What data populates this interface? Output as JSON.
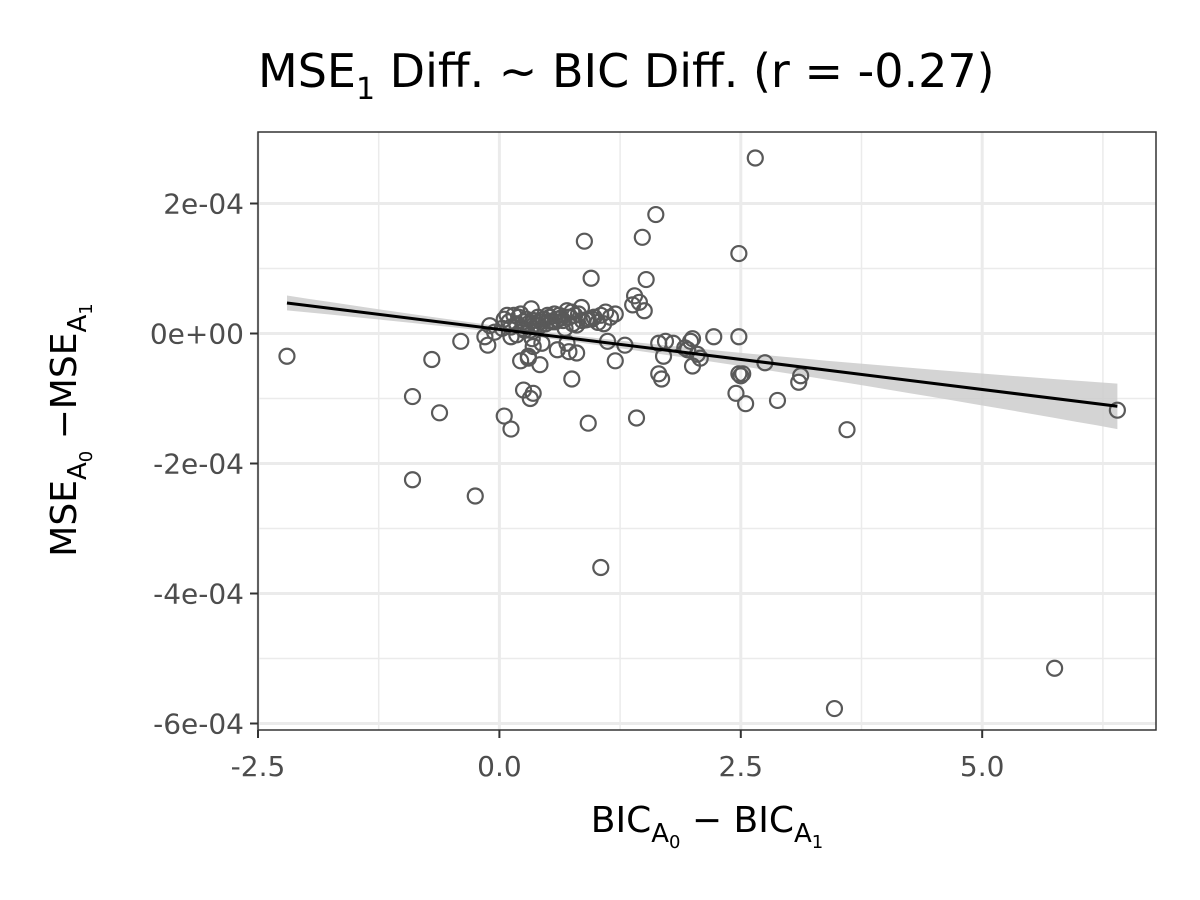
{
  "chart_data": {
    "type": "scatter",
    "title": {
      "main": "MSE",
      "main_sub": "1",
      "rest": " Diff. ~ BIC Diff. (r = -0.27)"
    },
    "xlabel": {
      "a": "BIC",
      "a_sub": "A",
      "a_subsub": "0",
      "op": " − ",
      "b": "BIC",
      "b_sub": "A",
      "b_subsub": "1"
    },
    "ylabel": {
      "a": "MSE",
      "a_sub": "A",
      "a_subsub": "0",
      "op": " −",
      "b": "MSE",
      "b_sub": "A",
      "b_subsub": "1"
    },
    "xlim": [
      -2.5,
      6.8
    ],
    "ylim": [
      -0.00061,
      0.00031
    ],
    "x_ticks": [
      {
        "value": -2.5,
        "label": "-2.5"
      },
      {
        "value": 0.0,
        "label": "0.0"
      },
      {
        "value": 2.5,
        "label": "2.5"
      },
      {
        "value": 5.0,
        "label": "5.0"
      }
    ],
    "x_minor": [
      -1.25,
      1.25,
      3.75,
      6.25
    ],
    "y_ticks": [
      {
        "value": 0.0002,
        "label": "2e-04"
      },
      {
        "value": 0.0,
        "label": "0e+00"
      },
      {
        "value": -0.0002,
        "label": "-2e-04"
      },
      {
        "value": -0.0004,
        "label": "-4e-04"
      },
      {
        "value": -0.0006,
        "label": "-6e-04"
      }
    ],
    "y_minor": [
      0.0001,
      -0.0001,
      -0.0003,
      -0.0005
    ],
    "grid": true,
    "colors": {
      "points": "#595959",
      "line": "#000000",
      "band": "#cccccc",
      "grid": "#ebebeb",
      "panel_border": "#333333"
    },
    "regression": {
      "x": [
        -2.2,
        6.4
      ],
      "y": [
        4.7e-05,
        -0.000112
      ],
      "band_upper": [
        5.8e-05,
        -7.7e-05
      ],
      "band_lower": [
        3.5e-05,
        -0.000147
      ]
    },
    "points": {
      "x": [
        2.65,
        1.62,
        0.88,
        1.48,
        2.48,
        0.95,
        1.52,
        1.4,
        1.45,
        1.38,
        1.5,
        1.2,
        1.1,
        1.05,
        0.98,
        0.92,
        0.85,
        0.82,
        0.78,
        0.75,
        0.72,
        0.7,
        0.66,
        0.62,
        0.6,
        0.57,
        0.55,
        0.52,
        0.5,
        0.48,
        0.46,
        0.43,
        0.4,
        0.38,
        0.35,
        0.33,
        0.3,
        0.28,
        0.25,
        0.22,
        0.2,
        0.18,
        0.15,
        0.12,
        0.1,
        0.08,
        0.05,
        0.03,
        0.32,
        0.42,
        0.58,
        0.68,
        0.76,
        0.86,
        0.96,
        1.08,
        1.15,
        0.24,
        0.36,
        0.54,
        0.64,
        0.8,
        0.9,
        1.02,
        -0.05,
        -0.1,
        0.12,
        0.18,
        0.26,
        0.34,
        0.44,
        -0.4,
        -0.15,
        -0.12,
        0.35,
        0.3,
        0.42,
        0.22,
        0.3,
        0.6,
        0.72,
        0.8,
        0.7,
        1.2,
        1.12,
        1.3,
        1.65,
        1.7,
        1.8,
        1.95,
        2.0,
        1.98,
        1.92,
        2.05,
        2.22,
        2.48,
        2.52,
        2.5,
        2.48,
        1.68,
        1.65,
        1.72,
        2.0,
        2.08,
        2.75,
        3.12,
        3.1,
        -2.2,
        -0.7,
        -0.9,
        -0.62,
        -0.9,
        -0.25,
        0.05,
        0.12,
        0.25,
        0.35,
        0.32,
        0.75,
        0.92,
        1.42,
        1.05,
        2.45,
        2.55,
        2.88,
        3.6,
        3.47,
        5.75,
        6.4
      ],
      "y": [
        0.00027,
        0.000183,
        0.000142,
        0.000148,
        0.000123,
        8.5e-05,
        8.3e-05,
        5.8e-05,
        4.8e-05,
        4.4e-05,
        3.5e-05,
        3e-05,
        3.3e-05,
        2.8e-05,
        2.5e-05,
        2.2e-05,
        4e-05,
        3e-05,
        2.8e-05,
        3.3e-05,
        2.5e-05,
        3.5e-05,
        2e-05,
        2.8e-05,
        2.2e-05,
        3e-05,
        1.8e-05,
        2.5e-05,
        2.8e-05,
        1.5e-05,
        2.2e-05,
        1.8e-05,
        2.5e-05,
        1.2e-05,
        2e-05,
        3.8e-05,
        1.5e-05,
        2.2e-05,
        1.8e-05,
        3e-05,
        2.5e-05,
        1.5e-05,
        2.8e-05,
        1e-05,
        1.8e-05,
        2.8e-05,
        2.2e-05,
        8e-06,
        5e-06,
        1.2e-05,
        1.8e-05,
        8e-06,
        1.5e-05,
        2e-05,
        2.2e-05,
        1.5e-05,
        2.5e-05,
        8e-06,
        1.4e-05,
        1.9e-05,
        2.4e-05,
        1.3e-05,
        2.1e-05,
        1.7e-05,
        2e-06,
        1.2e-05,
        -5e-06,
        -2e-06,
        5e-06,
        -8e-06,
        -1.5e-05,
        -1.2e-05,
        -5e-06,
        -1.8e-05,
        -2e-05,
        -3.5e-05,
        -4.8e-05,
        -4.2e-05,
        -3.8e-05,
        -2.5e-05,
        -2.8e-05,
        -3e-05,
        -1.5e-05,
        -4.2e-05,
        -1.2e-05,
        -1.8e-05,
        -1.5e-05,
        -3.5e-05,
        -1.5e-05,
        -2.5e-05,
        -8e-06,
        -1.2e-05,
        -2.2e-05,
        -3.2e-05,
        -5e-06,
        -5e-06,
        -6.2e-05,
        -6.5e-05,
        -6.2e-05,
        -7e-05,
        -6.2e-05,
        -1.2e-05,
        -5e-05,
        -3.8e-05,
        -4.5e-05,
        -6.5e-05,
        -7.5e-05,
        -3.5e-05,
        -4e-05,
        -9.7e-05,
        -0.000122,
        -0.000225,
        -0.00025,
        -0.000127,
        -0.000147,
        -8.7e-05,
        -9.2e-05,
        -0.0001,
        -7e-05,
        -0.000138,
        -0.00013,
        -0.00036,
        -9.2e-05,
        -0.000108,
        -0.000103,
        -0.000148,
        -0.000577,
        -0.000515,
        -0.000118
      ]
    }
  }
}
